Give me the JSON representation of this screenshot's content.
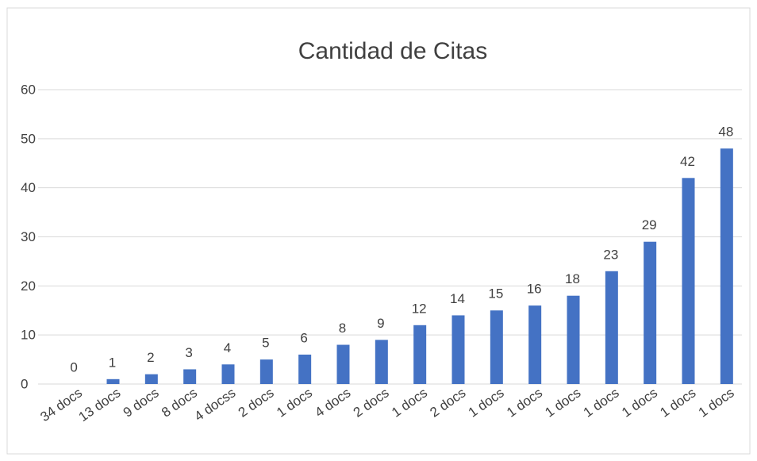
{
  "chart_data": {
    "type": "bar",
    "title": "Cantidad de Citas",
    "categories": [
      "34 docs",
      "13 docs",
      "9 docs",
      "8 docs",
      "4 docss",
      "2 docs",
      "1 docs",
      "4 docs",
      "2 docs",
      "1 docs",
      "2 docs",
      "1 docs",
      "1 docs",
      "1 docs",
      "1 docs",
      "1 docs",
      "1 docs",
      "1 docs"
    ],
    "values": [
      0,
      1,
      2,
      3,
      4,
      5,
      6,
      8,
      9,
      12,
      14,
      15,
      16,
      18,
      23,
      29,
      42,
      48
    ],
    "color": "#4472c4",
    "ylim": [
      0,
      60
    ],
    "yticks": [
      0,
      10,
      20,
      30,
      40,
      50,
      60
    ],
    "grid": true
  }
}
